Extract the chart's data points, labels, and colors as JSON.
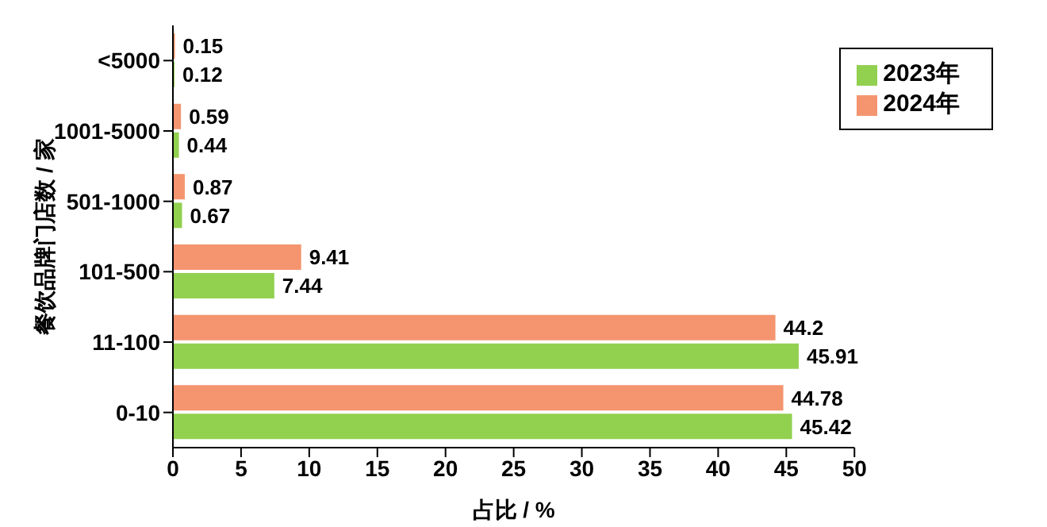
{
  "chart_data": {
    "type": "bar",
    "orientation": "horizontal",
    "categories": [
      "<5000",
      "1001-5000",
      "501-1000",
      "101-500",
      "11-100",
      "0-10"
    ],
    "series": [
      {
        "name": "2024年",
        "color": "#f4956f",
        "values": [
          0.15,
          0.59,
          0.87,
          9.41,
          44.2,
          44.78
        ]
      },
      {
        "name": "2023年",
        "color": "#92d050",
        "values": [
          0.12,
          0.44,
          0.67,
          7.44,
          45.91,
          45.42
        ]
      }
    ],
    "xlim": [
      0,
      50
    ],
    "xticks": [
      0,
      5,
      10,
      15,
      20,
      25,
      30,
      35,
      40,
      45,
      50
    ],
    "xlabel": "占比 / %",
    "ylabel": "餐饮品牌门店数 / 家",
    "data_labels": true,
    "legend": "top right",
    "grid": false
  }
}
